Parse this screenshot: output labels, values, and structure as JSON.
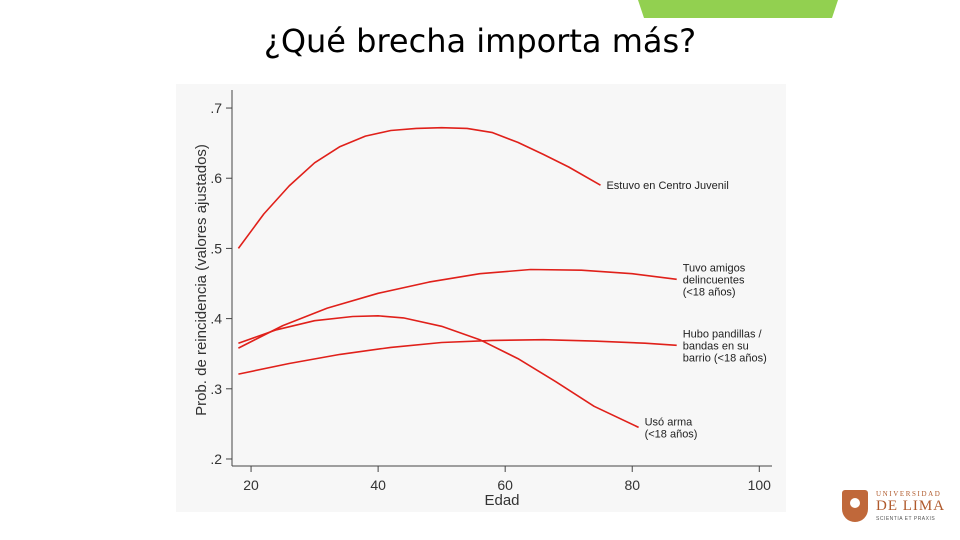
{
  "slide": {
    "title": "¿Qué brecha importa más?",
    "accent_color": "#92d050"
  },
  "logo": {
    "line1": "UNIVERSIDAD",
    "line2": "DE LIMA",
    "line3": "SCIENTIA ET PRAXIS"
  },
  "chart_data": {
    "type": "line",
    "title": "",
    "xlabel": "Edad",
    "ylabel": "Prob. de reincidencia (valores ajustados)",
    "xlim": [
      17,
      102
    ],
    "ylim": [
      0.19,
      0.72
    ],
    "xticks": [
      20,
      40,
      60,
      80,
      100
    ],
    "xtick_labels": [
      "20",
      "40",
      "60",
      "80",
      "100"
    ],
    "yticks": [
      0.2,
      0.3,
      0.4,
      0.5,
      0.6,
      0.7
    ],
    "ytick_labels": [
      ".2",
      ".3",
      ".4",
      ".5",
      ".6",
      ".7"
    ],
    "grid": false,
    "line_color": "#e0201a",
    "series": [
      {
        "name": "Estuvo en Centro Juvenil",
        "label_lines": [
          "Estuvo en Centro Juvenil"
        ],
        "x": [
          18,
          22,
          26,
          30,
          34,
          38,
          42,
          46,
          50,
          54,
          58,
          62,
          66,
          70,
          75
        ],
        "y": [
          0.5,
          0.549,
          0.589,
          0.622,
          0.645,
          0.66,
          0.668,
          0.671,
          0.672,
          0.671,
          0.665,
          0.651,
          0.634,
          0.616,
          0.59
        ]
      },
      {
        "name": "Tuvo amigos delincuentes (<18 años)",
        "label_lines": [
          "Tuvo amigos",
          "delincuentes",
          "(<18 años)"
        ],
        "x": [
          18,
          25,
          32,
          40,
          48,
          56,
          64,
          72,
          80,
          87
        ],
        "y": [
          0.358,
          0.39,
          0.415,
          0.436,
          0.452,
          0.464,
          0.47,
          0.469,
          0.464,
          0.456
        ]
      },
      {
        "name": "Hubo pandillas / bandas en su barrio (<18 años)",
        "label_lines": [
          "Hubo pandillas /",
          "bandas en su",
          "barrio (<18 años)"
        ],
        "x": [
          18,
          26,
          34,
          42,
          50,
          58,
          66,
          74,
          82,
          87
        ],
        "y": [
          0.321,
          0.336,
          0.349,
          0.359,
          0.366,
          0.369,
          0.37,
          0.368,
          0.365,
          0.362
        ]
      },
      {
        "name": "Usó arma (<18 años)",
        "label_lines": [
          "Usó arma",
          "(<18 años)"
        ],
        "x": [
          18,
          24,
          30,
          36,
          40,
          44,
          50,
          56,
          62,
          68,
          74,
          81
        ],
        "y": [
          0.365,
          0.384,
          0.397,
          0.403,
          0.404,
          0.401,
          0.389,
          0.37,
          0.343,
          0.31,
          0.275,
          0.245
        ]
      }
    ]
  }
}
